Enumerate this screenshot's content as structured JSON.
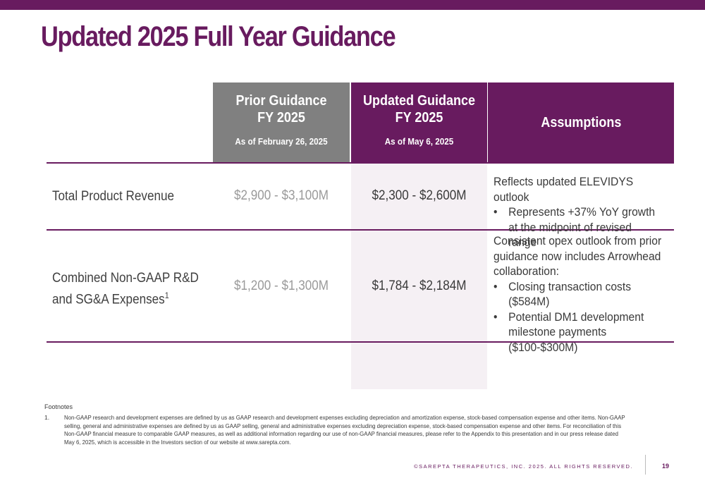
{
  "slide": {
    "title": "Updated 2025 Full Year Guidance",
    "accent_color": "#681b5f",
    "page_number": "19",
    "copyright": "©SAREPTA THERAPEUTICS, INC. 2025.  ALL RIGHTS RESERVED."
  },
  "table": {
    "headers": {
      "prior": {
        "line1": "Prior Guidance",
        "line2": "FY 2025",
        "sub": "As of February 26, 2025"
      },
      "updated": {
        "line1": "Updated Guidance",
        "line2": "FY 2025",
        "sub": "As of May 6, 2025"
      },
      "assumptions": "Assumptions"
    },
    "rows": [
      {
        "label": "Total Product Revenue",
        "prior": "$2,900 - $3,100M",
        "updated": "$2,300 - $2,600M",
        "assumption_intro": "Reflects updated ELEVIDYS outlook",
        "bullets": [
          "Represents +37% YoY growth at the midpoint of revised range"
        ]
      },
      {
        "label_line1": "Combined Non-GAAP R&D",
        "label_line2": "and SG&A Expenses",
        "label_sup": "1",
        "prior": "$1,200 - $1,300M",
        "updated": "$1,784 - $2,184M",
        "assumption_intro": "Consistent opex outlook from prior guidance now includes Arrowhead collaboration:",
        "bullets": [
          "Closing transaction costs ($584M)",
          "Potential DM1 development milestone payments ($100-$300M)"
        ]
      }
    ]
  },
  "footnotes": {
    "heading": "Footnotes",
    "items": [
      {
        "number": "1.",
        "text": "Non-GAAP research and development expenses are defined by us as GAAP research and development expenses excluding depreciation and amortization expense, stock-based compensation expense and other items. Non-GAAP selling, general and administrative expenses are defined by us as GAAP selling, general and administrative expenses excluding depreciation expense, stock-based compensation expense and other items. For reconciliation of this Non-GAAP financial measure to comparable GAAP measures, as well as additional information regarding our use of non-GAAP financial measures, please refer to the Appendix to this presentation and in our press release dated May 6, 2025, which is accessible in the Investors section of our website at www.sarepta.com."
      }
    ]
  }
}
